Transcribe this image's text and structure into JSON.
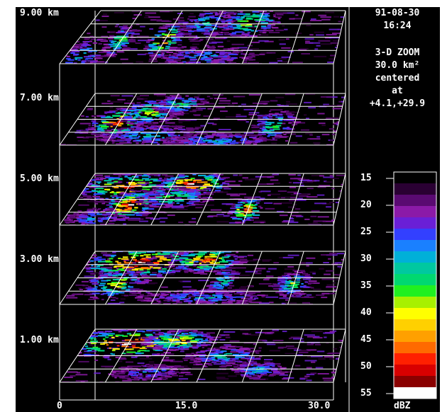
{
  "header": {
    "date": "91-08-30",
    "time": "16:24"
  },
  "info": {
    "line1": "3-D ZOOM",
    "line2": "30.0 km²",
    "line3": "centered",
    "line4": "at",
    "line5": "+4.1,+29.9"
  },
  "altitude_labels": [
    "9.00 km",
    "7.00 km",
    "5.00 km",
    "3.00 km",
    "1.00 km"
  ],
  "x_axis": {
    "ticks": [
      "0",
      "15.0",
      "30.0"
    ]
  },
  "color_scale": {
    "unit": "dBZ",
    "ticks": [
      "15",
      "20",
      "25",
      "30",
      "35",
      "40",
      "45",
      "50",
      "55"
    ],
    "colors": [
      "#000000",
      "#2a0033",
      "#5a0a72",
      "#8b1aa8",
      "#6a1fd6",
      "#3340ff",
      "#1a80ff",
      "#00b0d8",
      "#00c8a0",
      "#00d870",
      "#20f020",
      "#a8f000",
      "#ffff00",
      "#ffd000",
      "#ffa000",
      "#ff6a00",
      "#ff2000",
      "#d80000",
      "#8a0000",
      "#ffffff"
    ]
  },
  "layers": [
    {
      "altitude_km": 9.0,
      "blobs": [
        [
          0.15,
          0.55,
          0.05,
          0.3,
          0.5
        ],
        [
          0.32,
          0.55,
          0.06,
          0.35,
          0.8
        ],
        [
          0.45,
          0.25,
          0.1,
          0.3,
          0.4
        ],
        [
          0.62,
          0.2,
          0.12,
          0.3,
          0.6
        ],
        [
          0.05,
          0.85,
          0.08,
          0.4,
          0.3
        ],
        [
          0.5,
          0.85,
          0.2,
          0.2,
          0.25
        ]
      ]
    },
    {
      "altitude_km": 7.0,
      "blobs": [
        [
          0.15,
          0.55,
          0.1,
          0.3,
          0.85
        ],
        [
          0.25,
          0.35,
          0.12,
          0.25,
          0.6
        ],
        [
          0.35,
          0.2,
          0.1,
          0.2,
          0.45
        ],
        [
          0.75,
          0.6,
          0.08,
          0.3,
          0.5
        ],
        [
          0.3,
          0.8,
          0.2,
          0.2,
          0.35
        ],
        [
          0.55,
          0.9,
          0.2,
          0.15,
          0.3
        ]
      ]
    },
    {
      "altitude_km": 5.0,
      "blobs": [
        [
          0.15,
          0.25,
          0.2,
          0.3,
          0.8
        ],
        [
          0.4,
          0.2,
          0.15,
          0.25,
          0.95
        ],
        [
          0.2,
          0.6,
          0.1,
          0.3,
          0.9
        ],
        [
          0.65,
          0.7,
          0.06,
          0.25,
          0.85
        ],
        [
          0.35,
          0.45,
          0.15,
          0.2,
          0.55
        ],
        [
          0.1,
          0.85,
          0.1,
          0.2,
          0.3
        ]
      ]
    },
    {
      "altitude_km": 3.0,
      "blobs": [
        [
          0.2,
          0.2,
          0.25,
          0.3,
          0.95
        ],
        [
          0.45,
          0.15,
          0.15,
          0.25,
          0.8
        ],
        [
          0.15,
          0.6,
          0.12,
          0.3,
          0.6
        ],
        [
          0.55,
          0.55,
          0.05,
          0.25,
          0.45
        ],
        [
          0.82,
          0.6,
          0.07,
          0.25,
          0.5
        ],
        [
          0.5,
          0.85,
          0.25,
          0.15,
          0.3
        ]
      ]
    },
    {
      "altitude_km": 1.0,
      "blobs": [
        [
          0.15,
          0.25,
          0.25,
          0.3,
          0.95
        ],
        [
          0.35,
          0.2,
          0.15,
          0.2,
          0.7
        ],
        [
          0.55,
          0.5,
          0.15,
          0.2,
          0.35
        ],
        [
          0.7,
          0.75,
          0.1,
          0.15,
          0.35
        ],
        [
          0.3,
          0.8,
          0.15,
          0.15,
          0.25
        ]
      ]
    }
  ]
}
